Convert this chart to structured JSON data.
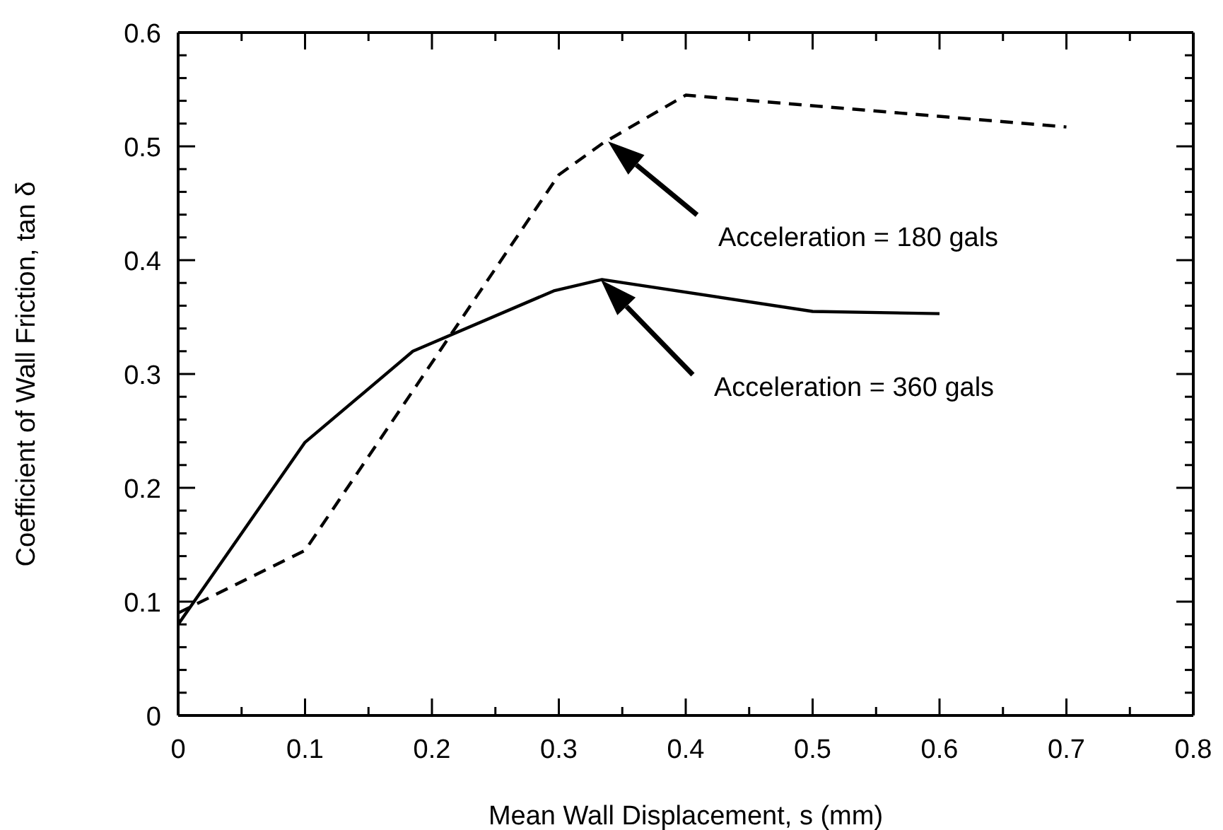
{
  "chart_data": {
    "type": "line",
    "xlabel": "Mean Wall Displacement, s (mm)",
    "ylabel": "Coefficient of Wall Friction, tan δ",
    "xlim": [
      0,
      0.8
    ],
    "ylim": [
      0,
      0.6
    ],
    "xticks": [
      0,
      {
        "value": 0.05,
        "label": null
      },
      0.1,
      {
        "value": 0.15,
        "label": null
      },
      0.2,
      {
        "value": 0.25,
        "label": null
      },
      0.3,
      {
        "value": 0.35,
        "label": null
      },
      0.4,
      {
        "value": 0.45,
        "label": null
      },
      0.5,
      {
        "value": 0.55,
        "label": null
      },
      0.6,
      {
        "value": 0.65,
        "label": null
      },
      0.7,
      {
        "value": 0.75,
        "label": null
      },
      0.8
    ],
    "yticks": [
      0,
      {
        "value": 0.02,
        "label": null
      },
      {
        "value": 0.04,
        "label": null
      },
      {
        "value": 0.06,
        "label": null
      },
      {
        "value": 0.08,
        "label": null
      },
      0.1,
      {
        "value": 0.12,
        "label": null
      },
      {
        "value": 0.14,
        "label": null
      },
      {
        "value": 0.16,
        "label": null
      },
      {
        "value": 0.18,
        "label": null
      },
      0.2,
      {
        "value": 0.22,
        "label": null
      },
      {
        "value": 0.24,
        "label": null
      },
      {
        "value": 0.26,
        "label": null
      },
      {
        "value": 0.28,
        "label": null
      },
      0.3,
      {
        "value": 0.32,
        "label": null
      },
      {
        "value": 0.34,
        "label": null
      },
      {
        "value": 0.36,
        "label": null
      },
      {
        "value": 0.38,
        "label": null
      },
      0.4,
      {
        "value": 0.42,
        "label": null
      },
      {
        "value": 0.44,
        "label": null
      },
      {
        "value": 0.46,
        "label": null
      },
      {
        "value": 0.48,
        "label": null
      },
      0.5,
      {
        "value": 0.52,
        "label": null
      },
      {
        "value": 0.54,
        "label": null
      },
      {
        "value": 0.56,
        "label": null
      },
      {
        "value": 0.58,
        "label": null
      },
      0.6
    ],
    "marker": "none",
    "series": [
      {
        "color": "#000000",
        "line_style": "dashed",
        "x": [
          0,
          0.1,
          0.3,
          0.335,
          0.4,
          0.7
        ],
        "values": [
          0.09,
          0.145,
          0.475,
          0.503,
          0.545,
          0.517
        ]
      },
      {
        "color": "#000000",
        "line_style": "solid",
        "x": [
          0,
          0.1,
          0.185,
          0.296,
          0.334,
          0.5,
          0.6
        ],
        "values": [
          0.08,
          0.24,
          0.32,
          0.373,
          0.383,
          0.355,
          0.353
        ]
      }
    ],
    "annotations": [
      "Acceleration = 180 gals",
      "Acceleration = 360 gals"
    ]
  }
}
